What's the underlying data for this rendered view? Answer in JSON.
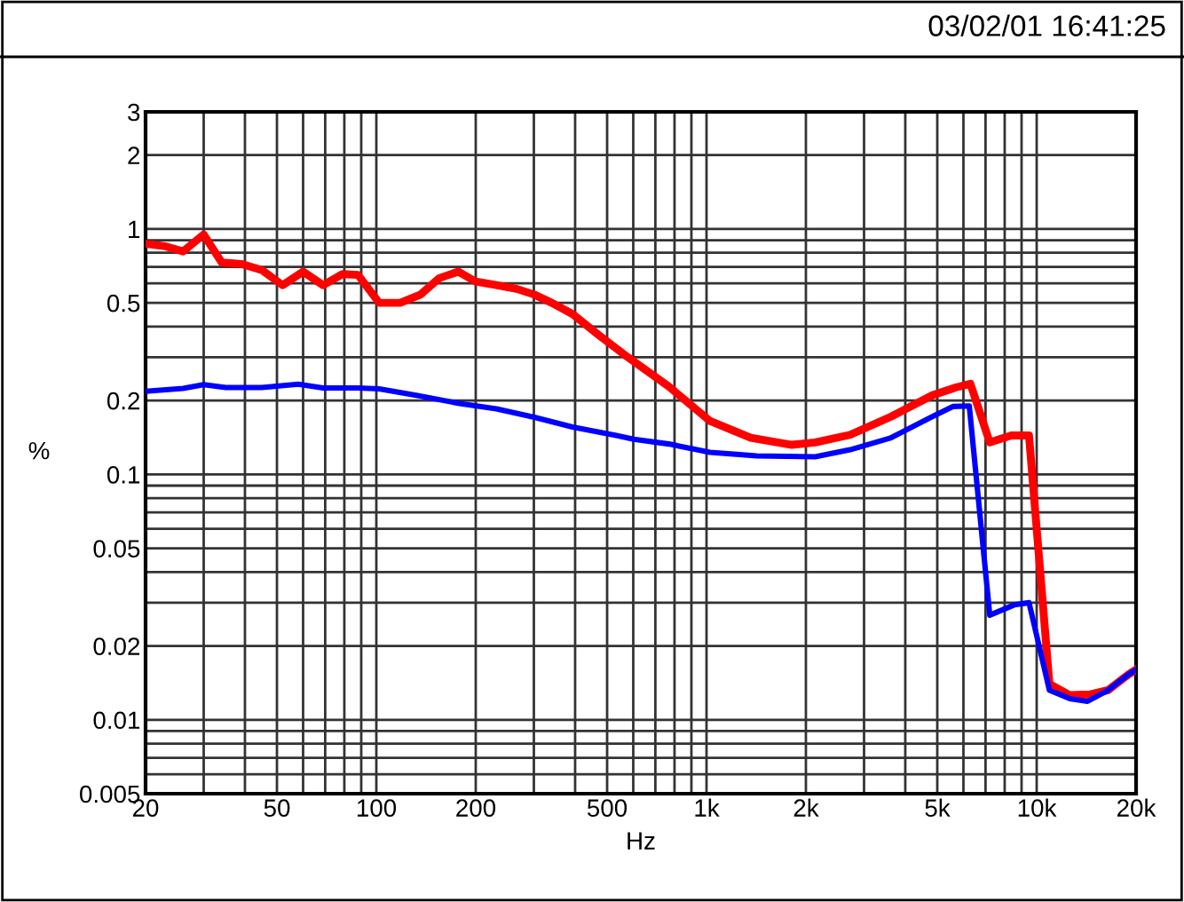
{
  "chart_data": {
    "type": "line",
    "xlabel": "Hz",
    "ylabel": "%",
    "log": "xy",
    "grid": true,
    "legend": false,
    "marker": "none",
    "line_style": "solid",
    "annotations": [
      "03/02/01 16:41:25"
    ],
    "xlim": [
      20,
      20000
    ],
    "xticks": [
      20,
      {
        "value": 30,
        "label": null
      },
      {
        "value": 40,
        "label": null
      },
      50,
      {
        "value": 60,
        "label": null
      },
      {
        "value": 70,
        "label": null
      },
      {
        "value": 80,
        "label": null
      },
      {
        "value": 90,
        "label": null
      },
      100,
      200,
      {
        "value": 300,
        "label": null
      },
      {
        "value": 400,
        "label": null
      },
      500,
      {
        "value": 600,
        "label": null
      },
      {
        "value": 700,
        "label": null
      },
      {
        "value": 800,
        "label": null
      },
      {
        "value": 900,
        "label": null
      },
      {
        "value": 1000,
        "label": "1k"
      },
      {
        "value": 2000,
        "label": "2k"
      },
      {
        "value": 3000,
        "label": null
      },
      {
        "value": 4000,
        "label": null
      },
      {
        "value": 5000,
        "label": "5k"
      },
      {
        "value": 6000,
        "label": null
      },
      {
        "value": 7000,
        "label": null
      },
      {
        "value": 8000,
        "label": null
      },
      {
        "value": 9000,
        "label": null
      },
      {
        "value": 10000,
        "label": "10k"
      },
      {
        "value": 20000,
        "label": "20k"
      }
    ],
    "ylim": [
      0.005,
      3
    ],
    "yticks": [
      0.005,
      {
        "value": 0.006,
        "label": null
      },
      {
        "value": 0.007,
        "label": null
      },
      {
        "value": 0.008,
        "label": null
      },
      {
        "value": 0.009,
        "label": null
      },
      0.01,
      0.02,
      {
        "value": 0.03,
        "label": null
      },
      {
        "value": 0.04,
        "label": null
      },
      0.05,
      {
        "value": 0.06,
        "label": null
      },
      {
        "value": 0.07,
        "label": null
      },
      {
        "value": 0.08,
        "label": null
      },
      {
        "value": 0.09,
        "label": null
      },
      0.1,
      0.2,
      {
        "value": 0.3,
        "label": null
      },
      {
        "value": 0.4,
        "label": null
      },
      0.5,
      {
        "value": 0.6,
        "label": null
      },
      {
        "value": 0.7,
        "label": null
      },
      {
        "value": 0.8,
        "label": null
      },
      {
        "value": 0.9,
        "label": null
      },
      1,
      2,
      3
    ],
    "series": [
      {
        "color": "#ff0000",
        "x": [
          20,
          23,
          26,
          30,
          34,
          39,
          45,
          52,
          60,
          69,
          79,
          88,
          102,
          118,
          136,
          155,
          177,
          200,
          231,
          266,
          301,
          340,
          393,
          471,
          578,
          769,
          1024,
          1362,
          1813,
          2133,
          2723,
          3624,
          4830,
          5680,
          6300,
          7210,
          8380,
          9480,
          10930,
          12600,
          14550,
          16440,
          18960,
          20000
        ],
        "values": [
          0.87,
          0.85,
          0.81,
          0.95,
          0.73,
          0.72,
          0.68,
          0.59,
          0.67,
          0.59,
          0.655,
          0.65,
          0.5,
          0.5,
          0.54,
          0.63,
          0.67,
          0.61,
          0.59,
          0.57,
          0.54,
          0.5,
          0.45,
          0.37,
          0.3,
          0.228,
          0.165,
          0.141,
          0.132,
          0.135,
          0.145,
          0.172,
          0.21,
          0.226,
          0.234,
          0.135,
          0.144,
          0.144,
          0.014,
          0.0126,
          0.0127,
          0.0132,
          0.0153,
          0.016
        ]
      },
      {
        "color": "#0000ff",
        "x": [
          20,
          26,
          30,
          35,
          45,
          58,
          69,
          88,
          102,
          132,
          177,
          231,
          301,
          393,
          533,
          602,
          769,
          1024,
          1419,
          2133,
          2723,
          3624,
          4830,
          5570,
          6250,
          7210,
          8550,
          9480,
          10930,
          12600,
          14260,
          16440,
          18960,
          20000
        ],
        "values": [
          0.218,
          0.224,
          0.232,
          0.226,
          0.226,
          0.233,
          0.225,
          0.225,
          0.223,
          0.21,
          0.195,
          0.185,
          0.171,
          0.156,
          0.144,
          0.139,
          0.133,
          0.123,
          0.119,
          0.118,
          0.126,
          0.141,
          0.172,
          0.189,
          0.19,
          0.0267,
          0.0294,
          0.03,
          0.0132,
          0.0122,
          0.0119,
          0.0132,
          0.0153,
          0.016
        ]
      }
    ]
  }
}
